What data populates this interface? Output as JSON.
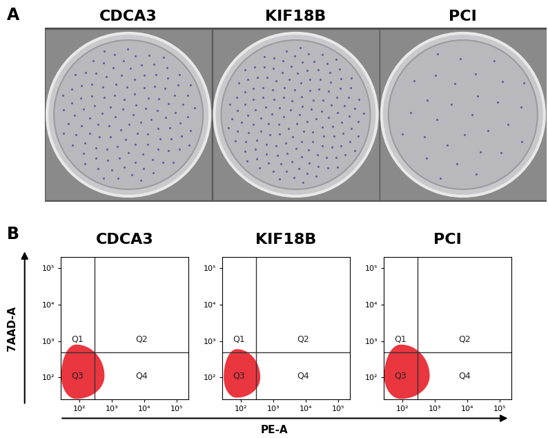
{
  "panel_a": {
    "label": "A",
    "wells": [
      {
        "title": "CDCA3",
        "colonies": 120
      },
      {
        "title": "KIF18B",
        "colonies": 150
      },
      {
        "title": "PCI",
        "colonies": 30
      }
    ]
  },
  "panel_b": {
    "label": "B",
    "y_label": "7AAD-A",
    "x_label": "PE-A"
  },
  "chart_data": [
    {
      "type": "scatter",
      "title": "CDCA3",
      "log": true,
      "color": "#e8202a",
      "xlim": [
        27,
        230000
      ],
      "ylim": [
        25,
        200000
      ],
      "xticks": [
        {
          "value": 100,
          "label": "10²"
        },
        {
          "value": 1000,
          "label": "10³"
        },
        {
          "value": 10000,
          "label": "10⁴"
        },
        {
          "value": 100000,
          "label": "10⁵"
        }
      ],
      "yticks": [
        {
          "value": 100,
          "label": "10²"
        },
        {
          "value": 1000,
          "label": "10³"
        },
        {
          "value": 10000,
          "label": "10⁴"
        },
        {
          "value": 100000,
          "label": "10⁵"
        }
      ],
      "gates": {
        "x": 300,
        "y": 500
      },
      "quadrants": [
        "Q1",
        "Q2",
        "Q3",
        "Q4"
      ],
      "population": {
        "center": [
          80,
          110
        ],
        "x_range": [
          28,
          600
        ],
        "y_range": [
          26,
          800
        ]
      }
    },
    {
      "type": "scatter",
      "title": "KIF18B",
      "log": true,
      "color": "#e8202a",
      "xlim": [
        27,
        230000
      ],
      "ylim": [
        25,
        200000
      ],
      "xticks": [
        {
          "value": 100,
          "label": "10²"
        },
        {
          "value": 1000,
          "label": "10³"
        },
        {
          "value": 10000,
          "label": "10⁴"
        },
        {
          "value": 100000,
          "label": "10⁵"
        }
      ],
      "yticks": [
        {
          "value": 100,
          "label": "10²"
        },
        {
          "value": 1000,
          "label": "10³"
        },
        {
          "value": 10000,
          "label": "10⁴"
        },
        {
          "value": 100000,
          "label": "10⁵"
        }
      ],
      "gates": {
        "x": 300,
        "y": 500
      },
      "quadrants": [
        "Q1",
        "Q2",
        "Q3",
        "Q4"
      ],
      "population": {
        "center": [
          75,
          100
        ],
        "x_range": [
          30,
          400
        ],
        "y_range": [
          28,
          600
        ]
      }
    },
    {
      "type": "scatter",
      "title": "PCI",
      "log": true,
      "color": "#e8202a",
      "xlim": [
        27,
        230000
      ],
      "ylim": [
        25,
        200000
      ],
      "xticks": [
        {
          "value": 100,
          "label": "10²"
        },
        {
          "value": 1000,
          "label": "10³"
        },
        {
          "value": 10000,
          "label": "10⁴"
        },
        {
          "value": 100000,
          "label": "10⁵"
        }
      ],
      "yticks": [
        {
          "value": 100,
          "label": "10²"
        },
        {
          "value": 1000,
          "label": "10³"
        },
        {
          "value": 10000,
          "label": "10⁴"
        },
        {
          "value": 100000,
          "label": "10⁵"
        }
      ],
      "gates": {
        "x": 300,
        "y": 500
      },
      "quadrants": [
        "Q1",
        "Q2",
        "Q3",
        "Q4"
      ],
      "population": {
        "center": [
          90,
          110
        ],
        "x_range": [
          28,
          700
        ],
        "y_range": [
          26,
          800
        ]
      }
    }
  ]
}
